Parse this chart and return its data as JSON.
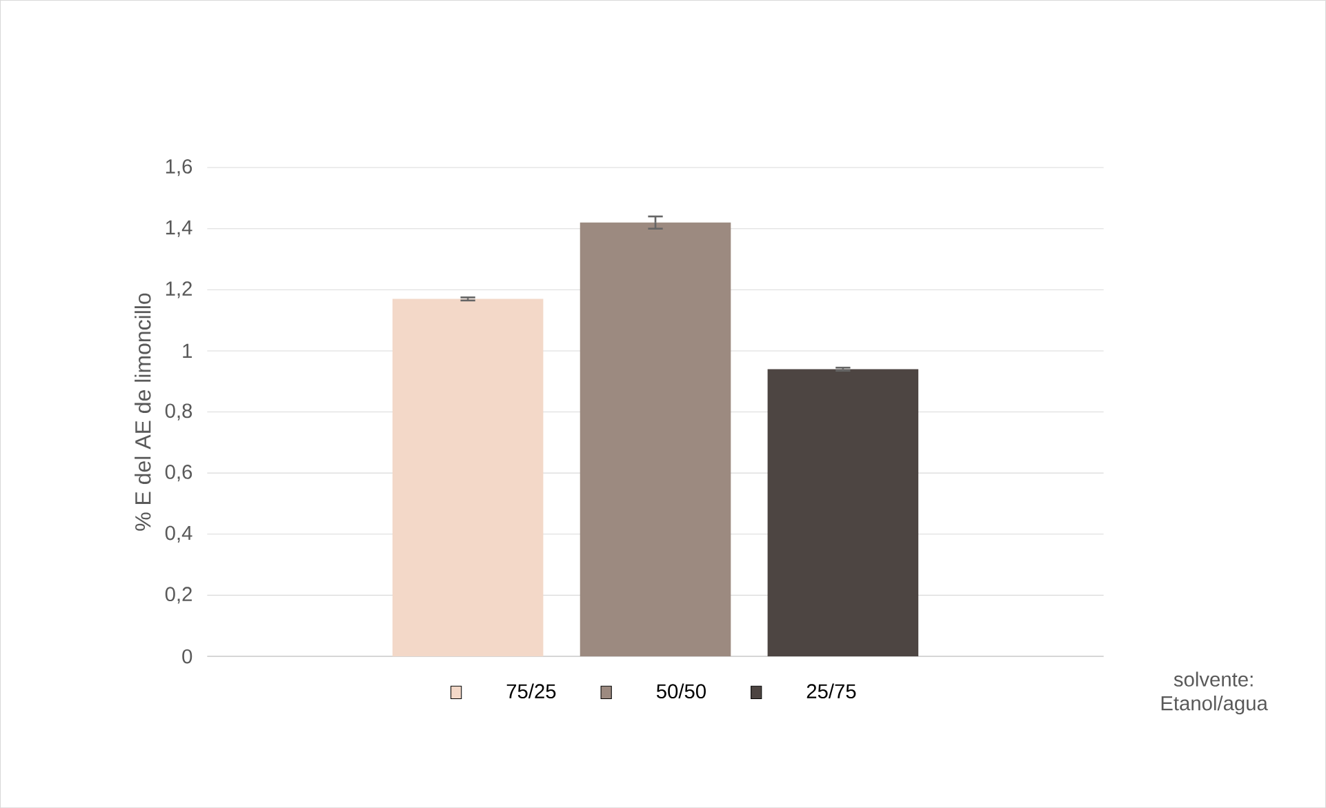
{
  "chart_data": {
    "type": "bar",
    "ylabel": "% E del AE de limoncillo",
    "categories": [
      null
    ],
    "series": [
      {
        "name": "75/25",
        "color": "#f3d8c8",
        "values": [
          1.17
        ],
        "errors": [
          0.005
        ]
      },
      {
        "name": "50/50",
        "color": "#9c8a80",
        "values": [
          1.42
        ],
        "errors": [
          0.02
        ]
      },
      {
        "name": "25/75",
        "color": "#4d4542",
        "values": [
          0.94
        ],
        "errors": [
          0.005
        ]
      }
    ],
    "ylim": [
      0,
      1.6
    ],
    "yticks": [
      {
        "value": 0,
        "label": "0"
      },
      {
        "value": 0.2,
        "label": "0,2"
      },
      {
        "value": 0.4,
        "label": "0,4"
      },
      {
        "value": 0.6,
        "label": "0,6"
      },
      {
        "value": 0.8,
        "label": "0,8"
      },
      {
        "value": 1,
        "label": "1"
      },
      {
        "value": 1.2,
        "label": "1,2"
      },
      {
        "value": 1.4,
        "label": "1,4"
      },
      {
        "value": 1.6,
        "label": "1,6"
      }
    ],
    "grid": "y",
    "legend": "bottom",
    "annotations": [
      "solvente: Etanol/agua"
    ]
  }
}
